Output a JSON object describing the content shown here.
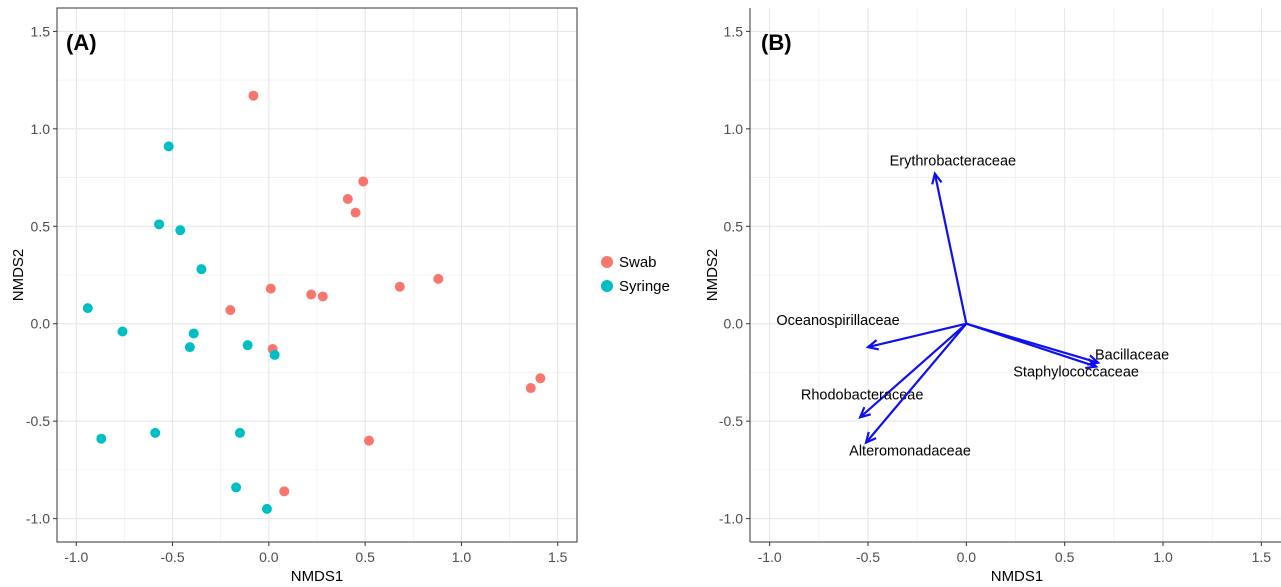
{
  "chart_data": [
    {
      "type": "scatter",
      "panel_label": "(A)",
      "xlabel": "NMDS1",
      "ylabel": "NMDS2",
      "xlim": [
        -1.1,
        1.6
      ],
      "ylim": [
        -1.12,
        1.62
      ],
      "xticks": [
        -1.0,
        -0.5,
        0.0,
        0.5,
        1.0,
        1.5
      ],
      "yticks": [
        -1.0,
        -0.5,
        0.0,
        0.5,
        1.0,
        1.5
      ],
      "xtick_labels": [
        "-1.0",
        "-0.5",
        "0.0",
        "0.5",
        "1.0",
        "1.5"
      ],
      "ytick_labels": [
        "-1.0",
        "-0.5",
        "0.0",
        "0.5",
        "1.0",
        "1.5"
      ],
      "grid": true,
      "legend_position": "right",
      "series": [
        {
          "name": "Swab",
          "color": "#F8766D",
          "points": [
            {
              "x": -0.08,
              "y": 1.17
            },
            {
              "x": 0.49,
              "y": 0.73
            },
            {
              "x": 0.41,
              "y": 0.64
            },
            {
              "x": 0.45,
              "y": 0.57
            },
            {
              "x": 0.88,
              "y": 0.23
            },
            {
              "x": 0.68,
              "y": 0.19
            },
            {
              "x": 0.01,
              "y": 0.18
            },
            {
              "x": 0.22,
              "y": 0.15
            },
            {
              "x": 0.28,
              "y": 0.14
            },
            {
              "x": -0.2,
              "y": 0.07
            },
            {
              "x": 0.02,
              "y": -0.13
            },
            {
              "x": 1.41,
              "y": -0.28
            },
            {
              "x": 1.36,
              "y": -0.33
            },
            {
              "x": 0.52,
              "y": -0.6
            },
            {
              "x": 0.08,
              "y": -0.86
            }
          ]
        },
        {
          "name": "Syringe",
          "color": "#00BFC4",
          "points": [
            {
              "x": -0.52,
              "y": 0.91
            },
            {
              "x": -0.57,
              "y": 0.51
            },
            {
              "x": -0.46,
              "y": 0.48
            },
            {
              "x": -0.35,
              "y": 0.28
            },
            {
              "x": -0.94,
              "y": 0.08
            },
            {
              "x": -0.76,
              "y": -0.04
            },
            {
              "x": -0.39,
              "y": -0.05
            },
            {
              "x": -0.41,
              "y": -0.12
            },
            {
              "x": -0.11,
              "y": -0.11
            },
            {
              "x": 0.03,
              "y": -0.16
            },
            {
              "x": -0.87,
              "y": -0.59
            },
            {
              "x": -0.59,
              "y": -0.56
            },
            {
              "x": -0.15,
              "y": -0.56
            },
            {
              "x": -0.17,
              "y": -0.84
            },
            {
              "x": -0.01,
              "y": -0.95
            }
          ]
        }
      ]
    },
    {
      "type": "biplot-vectors",
      "panel_label": "(B)",
      "xlabel": "NMDS1",
      "ylabel": "NMDS2",
      "xlim": [
        -1.1,
        1.6
      ],
      "ylim": [
        -1.12,
        1.62
      ],
      "xticks": [
        -1.0,
        -0.5,
        0.0,
        0.5,
        1.0,
        1.5
      ],
      "yticks": [
        -1.0,
        -0.5,
        0.0,
        0.5,
        1.0,
        1.5
      ],
      "xtick_labels": [
        "-1.0",
        "-0.5",
        "0.0",
        "0.5",
        "1.0",
        "1.5"
      ],
      "ytick_labels": [
        "-1.0",
        "-0.5",
        "0.0",
        "0.5",
        "1.0",
        "1.5"
      ],
      "grid": true,
      "arrow_color": "#1010EE",
      "vectors": [
        {
          "name": "Erythrobacteraceae",
          "x": -0.16,
          "y": 0.77
        },
        {
          "name": "Oceanospirillaceae",
          "x": -0.5,
          "y": -0.12
        },
        {
          "name": "Bacillaceae",
          "x": 0.67,
          "y": -0.2
        },
        {
          "name": "Staphylococcaceae",
          "x": 0.66,
          "y": -0.22
        },
        {
          "name": "Rhodobacteraceae",
          "x": -0.54,
          "y": -0.48
        },
        {
          "name": "Alteromonadaceae",
          "x": -0.51,
          "y": -0.61
        }
      ]
    }
  ]
}
